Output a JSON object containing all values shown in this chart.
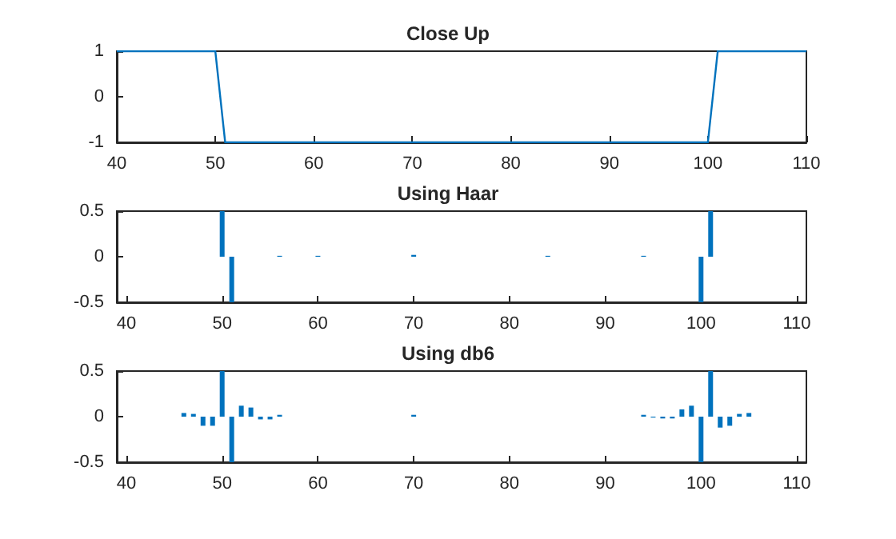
{
  "chart_data": [
    {
      "type": "line",
      "title": "Close Up",
      "x": [
        40,
        41,
        42,
        43,
        44,
        45,
        46,
        47,
        48,
        49,
        50,
        51,
        52,
        53,
        54,
        55,
        56,
        57,
        58,
        59,
        60,
        61,
        62,
        63,
        64,
        65,
        66,
        67,
        68,
        69,
        70,
        71,
        72,
        73,
        74,
        75,
        76,
        77,
        78,
        79,
        80,
        81,
        82,
        83,
        84,
        85,
        86,
        87,
        88,
        89,
        90,
        91,
        92,
        93,
        94,
        95,
        96,
        97,
        98,
        99,
        100,
        101,
        102,
        103,
        104,
        105,
        106,
        107,
        108,
        109,
        110
      ],
      "series": [
        {
          "color": "#0072bd",
          "values": [
            1,
            1,
            1,
            1,
            1,
            1,
            1,
            1,
            1,
            1,
            1,
            -1,
            -1,
            -1,
            -1,
            -1,
            -1,
            -1,
            -1,
            -1,
            -1,
            -1,
            -1,
            -1,
            -1,
            -1,
            -1,
            -1,
            -1,
            -1,
            -1,
            -1,
            -1,
            -1,
            -1,
            -1,
            -1,
            -1,
            -1,
            -1,
            -1,
            -1,
            -1,
            -1,
            -1,
            -1,
            -1,
            -1,
            -1,
            -1,
            -1,
            -1,
            -1,
            -1,
            -1,
            -1,
            -1,
            -1,
            -1,
            -1,
            -1,
            1,
            1,
            1,
            1,
            1,
            1,
            1,
            1,
            1,
            1
          ]
        }
      ],
      "xlim": [
        40,
        110
      ],
      "xticks": [
        40,
        50,
        60,
        70,
        80,
        90,
        100,
        110
      ],
      "ylim": [
        -1,
        1
      ],
      "yticks": [
        -1,
        0,
        1
      ],
      "grid": false
    },
    {
      "type": "bar",
      "title": "Using Haar",
      "x": [
        40,
        41,
        42,
        43,
        44,
        45,
        46,
        47,
        48,
        49,
        50,
        51,
        52,
        53,
        54,
        55,
        56,
        57,
        58,
        59,
        60,
        61,
        62,
        63,
        64,
        65,
        66,
        67,
        68,
        69,
        70,
        71,
        72,
        73,
        74,
        75,
        76,
        77,
        78,
        79,
        80,
        81,
        82,
        83,
        84,
        85,
        86,
        87,
        88,
        89,
        90,
        91,
        92,
        93,
        94,
        95,
        96,
        97,
        98,
        99,
        100,
        101,
        102,
        103,
        104,
        105,
        106,
        107,
        108,
        109,
        110
      ],
      "series": [
        {
          "color": "#0072bd",
          "values": [
            0,
            0,
            0,
            0,
            0,
            0,
            0,
            0,
            0,
            0,
            0.5,
            -0.5,
            0,
            0,
            0,
            0,
            0.01,
            0,
            0,
            0,
            0.01,
            0,
            0,
            0,
            0,
            0,
            0,
            0,
            0,
            0,
            0.02,
            0,
            0,
            0,
            0,
            0,
            0,
            0,
            0,
            0,
            0,
            0,
            0,
            0,
            0.01,
            0,
            0,
            0,
            0,
            0,
            0,
            0,
            0,
            0,
            0.01,
            0,
            0,
            0,
            0,
            0,
            -0.5,
            0.5,
            0,
            0,
            0,
            0,
            0,
            0,
            0,
            0,
            0
          ]
        }
      ],
      "xlim": [
        39,
        111
      ],
      "xticks": [
        40,
        50,
        60,
        70,
        80,
        90,
        100,
        110
      ],
      "ylim": [
        -0.5,
        0.5
      ],
      "yticks": [
        -0.5,
        0,
        0.5
      ],
      "grid": false
    },
    {
      "type": "bar",
      "title": "Using db6",
      "x": [
        40,
        41,
        42,
        43,
        44,
        45,
        46,
        47,
        48,
        49,
        50,
        51,
        52,
        53,
        54,
        55,
        56,
        57,
        58,
        59,
        60,
        61,
        62,
        63,
        64,
        65,
        66,
        67,
        68,
        69,
        70,
        71,
        72,
        73,
        74,
        75,
        76,
        77,
        78,
        79,
        80,
        81,
        82,
        83,
        84,
        85,
        86,
        87,
        88,
        89,
        90,
        91,
        92,
        93,
        94,
        95,
        96,
        97,
        98,
        99,
        100,
        101,
        102,
        103,
        104,
        105,
        106,
        107,
        108,
        109,
        110
      ],
      "series": [
        {
          "color": "#0072bd",
          "values": [
            0,
            0,
            0,
            0,
            0,
            0,
            0.04,
            0.03,
            -0.1,
            -0.1,
            0.5,
            -0.5,
            0.12,
            0.1,
            -0.03,
            -0.03,
            0.02,
            0,
            0,
            0,
            0,
            0,
            0,
            0,
            0,
            0,
            0,
            0,
            0,
            0,
            0.02,
            0,
            0,
            0,
            0,
            0,
            0,
            0,
            0,
            0,
            0,
            0,
            0,
            0,
            0,
            0,
            0,
            0,
            0,
            0,
            0,
            0,
            0,
            0,
            0.02,
            -0.01,
            -0.02,
            -0.02,
            0.08,
            0.12,
            -0.5,
            0.5,
            -0.12,
            -0.1,
            0.03,
            0.04,
            0,
            0,
            0,
            0,
            0
          ]
        }
      ],
      "xlim": [
        39,
        111
      ],
      "xticks": [
        40,
        50,
        60,
        70,
        80,
        90,
        100,
        110
      ],
      "ylim": [
        -0.5,
        0.5
      ],
      "yticks": [
        -0.5,
        0,
        0.5
      ],
      "grid": false
    }
  ]
}
